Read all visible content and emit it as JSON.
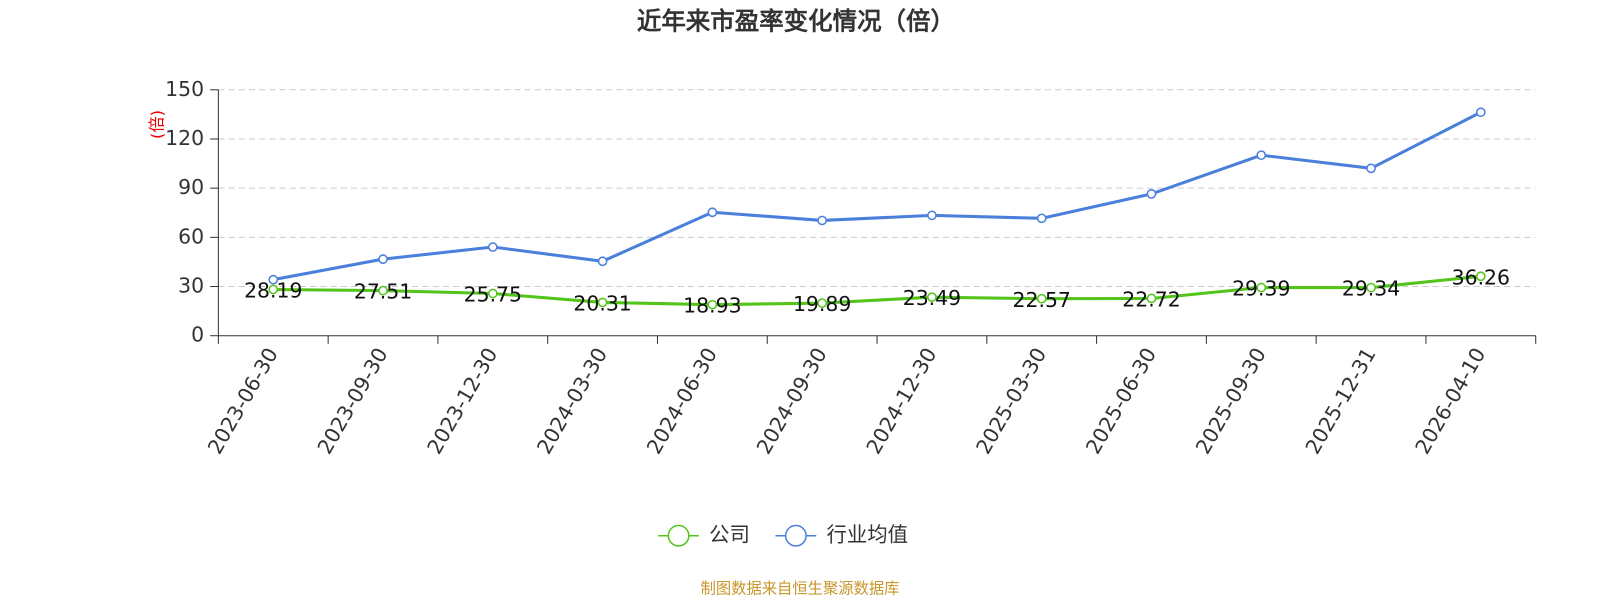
{
  "chart_data": {
    "type": "line",
    "title": "近年来市盈率变化情况（倍）",
    "y_label": "(倍)",
    "categories": [
      "2023-06-30",
      "2023-09-30",
      "2023-12-30",
      "2024-03-30",
      "2024-06-30",
      "2024-09-30",
      "2024-12-30",
      "2025-03-30",
      "2025-06-30",
      "2025-09-30",
      "2025-12-31",
      "2026-04-10"
    ],
    "series": [
      {
        "name": "公司",
        "color": "#52c41a",
        "values": [
          28.19,
          27.51,
          25.75,
          20.31,
          18.93,
          19.89,
          23.49,
          22.57,
          22.72,
          29.39,
          29.34,
          36.26
        ],
        "show_labels": true
      },
      {
        "name": "行业均值",
        "color": "#4a7fdc",
        "values": [
          34.2,
          46.7,
          54.1,
          45.4,
          75.3,
          70.3,
          73.4,
          71.6,
          86.5,
          110.1,
          102.1,
          136.3
        ],
        "show_labels": false
      }
    ],
    "ylim": [
      0,
      150
    ],
    "yticks": [
      0,
      30,
      60,
      90,
      120,
      150
    ],
    "grid": true,
    "source": "制图数据来自恒生聚源数据库"
  }
}
